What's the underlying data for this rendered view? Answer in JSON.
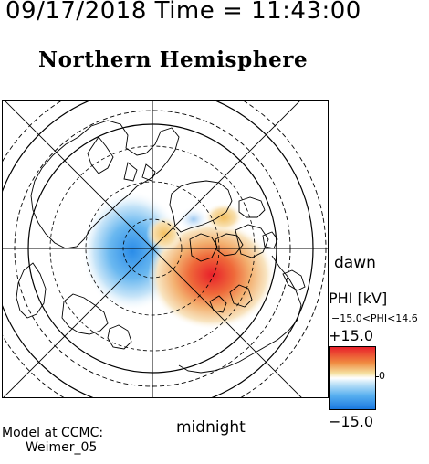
{
  "header": {
    "timestamp": "09/17/2018 Time = 11:43:00",
    "title": "Northern Hemisphere"
  },
  "map": {
    "label_right": "dawn",
    "label_bottom": "midnight",
    "colors": {
      "positive": "#e8202a",
      "negative": "#2a8ce8",
      "neutral": "#ffffff",
      "mid_positive": "#f3d680",
      "grid": "#000000"
    }
  },
  "colorbar": {
    "title": "PHI [kV]",
    "range_text": "−15.0<PHI<14.6",
    "max_label": "+15.0",
    "min_label": "−15.0",
    "mid_label": "0"
  },
  "credit": {
    "line1": "Model at CCMC:",
    "line2": "Weimer_05"
  }
}
